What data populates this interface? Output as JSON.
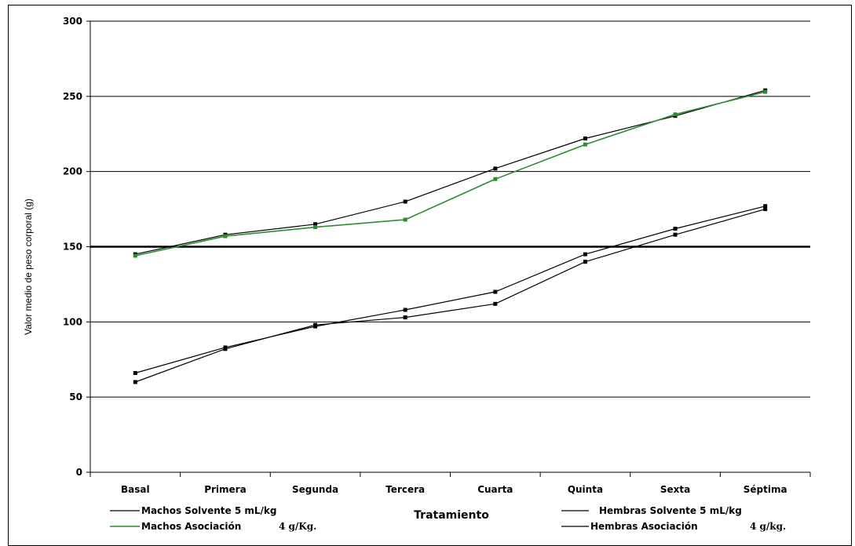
{
  "chart_data": {
    "type": "line",
    "categories": [
      "Basal",
      "Primera",
      "Segunda",
      "Tercera",
      "Cuarta",
      "Quinta",
      "Sexta",
      "Séptima"
    ],
    "ylabel": "Valor medio de peso corporal (g)",
    "xlabel": "Tratamiento",
    "ylim": [
      0,
      300
    ],
    "yticks": [
      "0",
      "50",
      "100",
      "150",
      "200",
      "250",
      "300"
    ],
    "grid": true,
    "reference_line": 150,
    "legend_position": "bottom",
    "series": [
      {
        "name": "Machos Solvente 5 mL/kg",
        "unit": "",
        "color": "#000000",
        "values": [
          145,
          158,
          165,
          180,
          202,
          222,
          237,
          254
        ]
      },
      {
        "name": "Machos Asociación",
        "unit": "4 g/Kg.",
        "color": "#2e8b2e",
        "values": [
          144,
          157,
          163,
          168,
          195,
          218,
          238,
          253
        ]
      },
      {
        "name": "Hembras Solvente 5 mL/kg",
        "unit": "",
        "color": "#000000",
        "values": [
          66,
          83,
          97,
          108,
          120,
          145,
          162,
          177
        ]
      },
      {
        "name": "Hembras Asociación",
        "unit": "4 g/kg.",
        "color": "#000000",
        "values": [
          60,
          82,
          98,
          103,
          112,
          140,
          158,
          175
        ]
      }
    ]
  }
}
